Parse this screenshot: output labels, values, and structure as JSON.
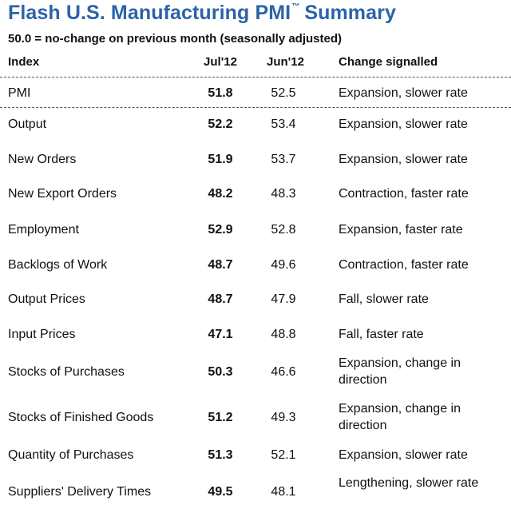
{
  "title": {
    "main": "Flash U.S. Manufacturing PMI",
    "tm": "™",
    "suffix": "Summary"
  },
  "subtitle": "50.0 = no-change on previous month (seasonally adjusted)",
  "headers": {
    "index": "Index",
    "jul": "Jul'12",
    "jun": "Jun'12",
    "change": "Change signalled"
  },
  "rows": [
    {
      "index": "PMI",
      "jul": "51.8",
      "jun": "52.5",
      "change": "Expansion, slower rate"
    },
    {
      "index": "Output",
      "jul": "52.2",
      "jun": "53.4",
      "change": "Expansion, slower rate"
    },
    {
      "index": "New Orders",
      "jul": "51.9",
      "jun": "53.7",
      "change": "Expansion, slower rate"
    },
    {
      "index": "New Export Orders",
      "jul": "48.2",
      "jun": "48.3",
      "change": "Contraction, faster rate"
    },
    {
      "index": "Employment",
      "jul": "52.9",
      "jun": "52.8",
      "change": "Expansion, faster rate"
    },
    {
      "index": "Backlogs of Work",
      "jul": "48.7",
      "jun": "49.6",
      "change": "Contraction, faster rate"
    },
    {
      "index": "Output Prices",
      "jul": "48.7",
      "jun": "47.9",
      "change": "Fall, slower rate"
    },
    {
      "index": "Input Prices",
      "jul": "47.1",
      "jun": "48.8",
      "change": "Fall, faster rate"
    },
    {
      "index": "Stocks of Purchases",
      "jul": "50.3",
      "jun": "46.6",
      "change": "Expansion, change in direction"
    },
    {
      "index": "Stocks of Finished Goods",
      "jul": "51.2",
      "jun": "49.3",
      "change": "Expansion, change in direction"
    },
    {
      "index": "Quantity of Purchases",
      "jul": "51.3",
      "jun": "52.1",
      "change": "Expansion, slower rate"
    },
    {
      "index": "Suppliers' Delivery Times",
      "jul": "49.5",
      "jun": "48.1",
      "change": "Lengthening, slower rate"
    }
  ]
}
